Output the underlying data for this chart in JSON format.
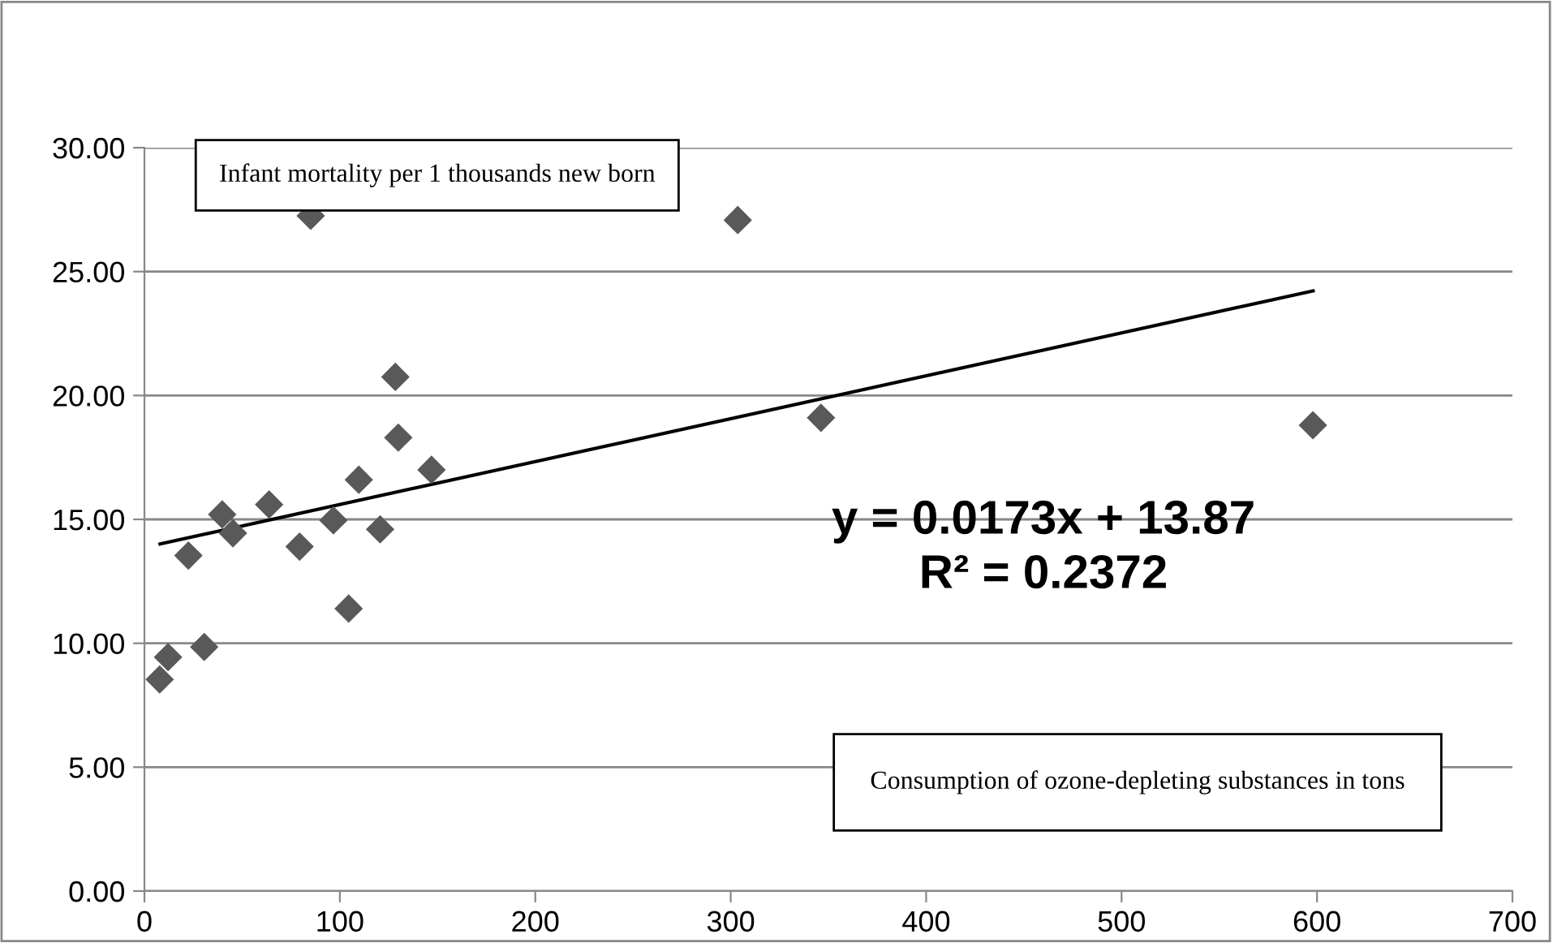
{
  "chart_data": {
    "type": "scatter",
    "xlabel": "Consumption of ozone-depleting substances in tons",
    "ylabel": "Infant mortality per 1 thousands new born",
    "series": [
      {
        "color": "#595959",
        "marker": "diamond",
        "x": [
          7.8,
          12.1,
          22.5,
          30.6,
          39.8,
          45.3,
          63.8,
          79.4,
          85.1,
          96.7,
          104.5,
          109.7,
          120.6,
          128.4,
          129.9,
          146.9,
          303.6,
          346.2,
          597.9
        ],
        "values": [
          8.54,
          9.44,
          13.54,
          9.85,
          15.2,
          14.44,
          15.6,
          13.9,
          27.25,
          14.96,
          11.4,
          16.6,
          14.6,
          20.75,
          18.3,
          17.0,
          27.08,
          19.1,
          18.8
        ]
      },
      {
        "type": "line",
        "color": "#000000",
        "marker": "none",
        "line_style": "solid",
        "x": [
          8,
          598
        ],
        "values": [
          14.01,
          24.22
        ]
      }
    ],
    "annotations": [
      "y = 0.0173x + 13.87\nR² = 0.2372"
    ],
    "xlim": [
      0,
      700
    ],
    "xticks": [
      0,
      100,
      200,
      300,
      400,
      500,
      600,
      700
    ],
    "ylim": [
      0,
      30
    ],
    "yticks": [
      {
        "value": 0,
        "label": "0.00"
      },
      {
        "value": 5,
        "label": "5.00"
      },
      {
        "value": 10,
        "label": "10.00"
      },
      {
        "value": 15,
        "label": "15.00"
      },
      {
        "value": 20,
        "label": "20.00"
      },
      {
        "value": 25,
        "label": "25.00"
      },
      {
        "value": 30,
        "label": "30.00"
      }
    ],
    "grid": "y",
    "legend": false
  }
}
